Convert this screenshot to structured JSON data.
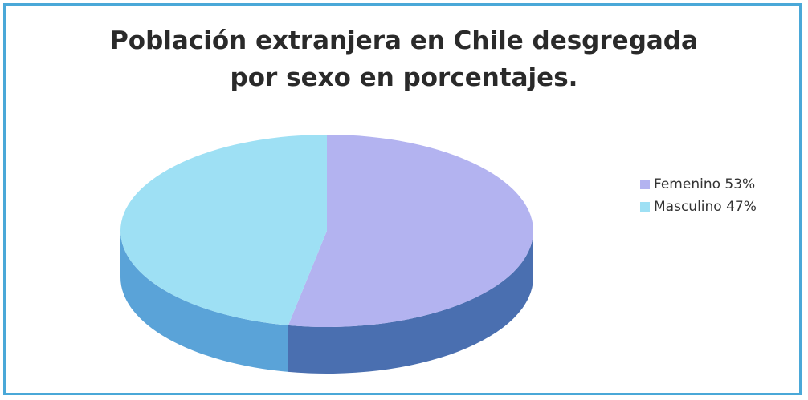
{
  "chart_data": {
    "type": "pie",
    "title_lines": [
      "Población extranjera en Chile desgregada",
      "por sexo en porcentajes."
    ],
    "slices": [
      {
        "label": "Femenino 53%",
        "value": 53,
        "color": "#b3b3f0",
        "side_color": "#4a6fb0"
      },
      {
        "label": "Masculino 47%",
        "value": 47,
        "color": "#9ee0f4",
        "side_color": "#5aa3d8"
      }
    ],
    "legend_position": "right"
  }
}
